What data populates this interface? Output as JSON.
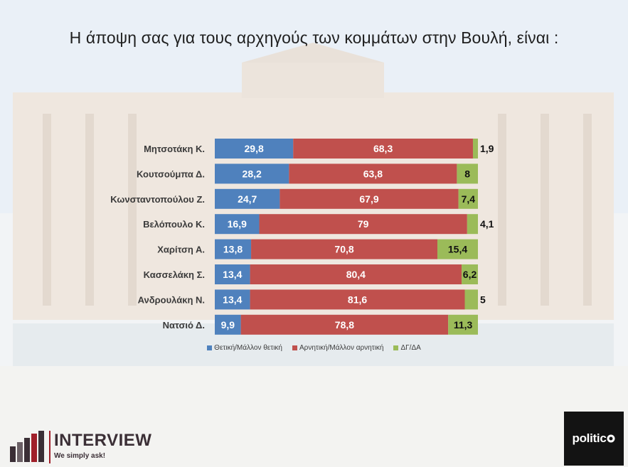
{
  "title": "Η άποψη σας για τους αρχηγούς των κομμάτων στην Βουλή,  είναι :",
  "chart_data": {
    "type": "bar",
    "orientation": "horizontal",
    "stacked": true,
    "title": "Η άποψη σας για τους αρχηγούς των κομμάτων στην Βουλή,  είναι :",
    "categories": [
      "Μητσοτάκη Κ.",
      "Κουτσούμπα Δ.",
      "Κωνσταντοπούλου Ζ.",
      "Βελόπουλο Κ.",
      "Χαρίτση Α.",
      "Κασσελάκη Σ.",
      "Ανδρουλάκη Ν.",
      "Νατσιό Δ."
    ],
    "series": [
      {
        "name": "Θετική/Μάλλον θετική",
        "color": "#4f81bd",
        "labels": [
          "29,8",
          "28,2",
          "24,7",
          "16,9",
          "13,8",
          "13,4",
          "13,4",
          "9,9"
        ],
        "values": [
          29.8,
          28.2,
          24.7,
          16.9,
          13.8,
          13.4,
          13.4,
          9.9
        ]
      },
      {
        "name": "Αρνητική/Μάλλον αρνητική",
        "color": "#c0504d",
        "labels": [
          "68,3",
          "63,8",
          "67,9",
          "79",
          "70,8",
          "80,4",
          "81,6",
          "78,8"
        ],
        "values": [
          68.3,
          63.8,
          67.9,
          79,
          70.8,
          80.4,
          81.6,
          78.8
        ]
      },
      {
        "name": "ΔΓ/ΔΑ",
        "color": "#9bbb59",
        "labels": [
          "1,9",
          "8",
          "7,4",
          "4,1",
          "15,4",
          "6,2",
          "5",
          "11,3"
        ],
        "values": [
          1.9,
          8,
          7.4,
          4.1,
          15.4,
          6.2,
          5,
          11.3
        ]
      }
    ],
    "xlim": [
      0,
      100
    ],
    "grid": false,
    "legend_position": "bottom"
  },
  "logos": {
    "interview_name": "INTERVIEW",
    "interview_tagline": "We simply ask!",
    "politic_name": "politic"
  }
}
